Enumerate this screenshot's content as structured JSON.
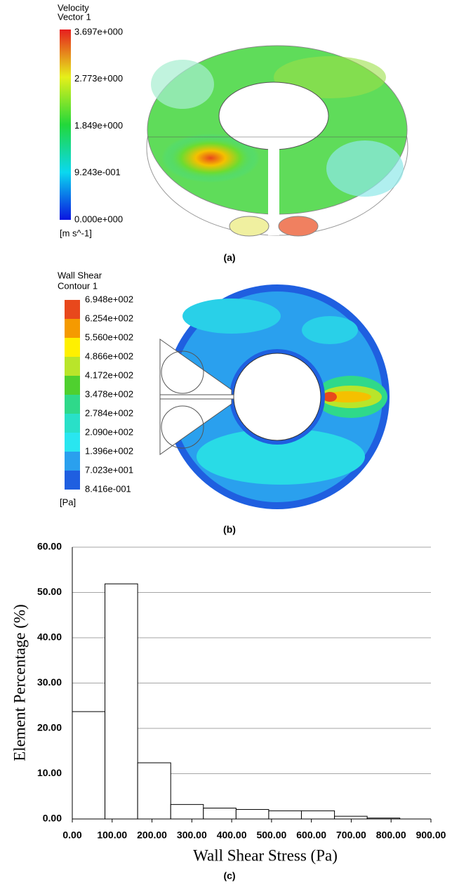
{
  "panel_a": {
    "legend_title": "Velocity",
    "legend_subtitle": "Vector 1",
    "scale_labels": [
      "3.697e+000",
      "2.773e+000",
      "1.849e+000",
      "9.243e-001",
      "0.000e+000"
    ],
    "unit": "[m s^-1]",
    "caption": "(a)"
  },
  "panel_b": {
    "legend_title": "Wall Shear",
    "legend_subtitle": "Contour 1",
    "scale_labels": [
      "6.948e+002",
      "6.254e+002",
      "5.560e+002",
      "4.866e+002",
      "4.172e+002",
      "3.478e+002",
      "2.784e+002",
      "2.090e+002",
      "1.396e+002",
      "7.023e+001",
      "8.416e-001"
    ],
    "unit": "[Pa]",
    "caption": "(b)"
  },
  "chart_data": {
    "type": "histogram",
    "caption": "(c)",
    "x_label": "Wall Shear Stress (Pa)",
    "y_label": "Element Percentage (%)",
    "bins": [
      0,
      82,
      164,
      247,
      329,
      411,
      493,
      575,
      658,
      740,
      822
    ],
    "values": [
      23.7,
      51.9,
      12.4,
      3.2,
      2.4,
      2.1,
      1.8,
      1.8,
      0.6,
      0.2
    ],
    "color": "#ffffff",
    "grid": true,
    "xlim": [
      0,
      900
    ],
    "xticks": [
      {
        "value": 0,
        "label": "0.00"
      },
      {
        "value": 100,
        "label": "100.00"
      },
      {
        "value": 200,
        "label": "200.00"
      },
      {
        "value": 300,
        "label": "300.00"
      },
      {
        "value": 400,
        "label": "400.00"
      },
      {
        "value": 500,
        "label": "500.00"
      },
      {
        "value": 600,
        "label": "600.00"
      },
      {
        "value": 700,
        "label": "700.00"
      },
      {
        "value": 800,
        "label": "800.00"
      },
      {
        "value": 900,
        "label": "900.00"
      }
    ],
    "ylim": [
      0,
      60
    ],
    "yticks": [
      {
        "value": 0,
        "label": "0.00"
      },
      {
        "value": 10,
        "label": "10.00"
      },
      {
        "value": 20,
        "label": "20.00"
      },
      {
        "value": 30,
        "label": "30.00"
      },
      {
        "value": 40,
        "label": "40.00"
      },
      {
        "value": 50,
        "label": "50.00"
      },
      {
        "value": 60,
        "label": "60.00"
      }
    ]
  }
}
